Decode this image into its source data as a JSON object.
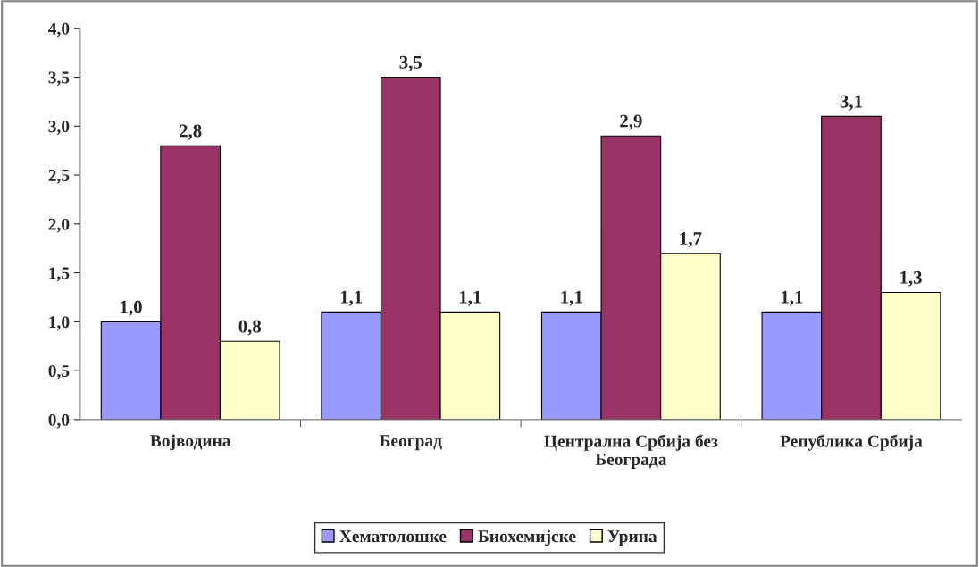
{
  "chart_data": {
    "type": "bar",
    "categories": [
      "Војводина",
      "Београд",
      "Централна Србија без Београда",
      "Република Србија"
    ],
    "series": [
      {
        "name": "Хематолошке",
        "color": "#9999ff",
        "values": [
          1.0,
          1.1,
          1.1,
          1.1
        ],
        "value_labels": [
          "1,0",
          "1,1",
          "1,1",
          "1,1"
        ]
      },
      {
        "name": "Биохемијске",
        "color": "#993366",
        "values": [
          2.8,
          3.5,
          2.9,
          3.1
        ],
        "value_labels": [
          "2,8",
          "3,5",
          "2,9",
          "3,1"
        ]
      },
      {
        "name": "Урина",
        "color": "#ffffcc",
        "values": [
          0.8,
          1.1,
          1.7,
          1.3
        ],
        "value_labels": [
          "0,8",
          "1,1",
          "1,7",
          "1,3"
        ]
      }
    ],
    "ylim": [
      0,
      4
    ],
    "yticks": [
      {
        "value": 0,
        "label": "0,0"
      },
      {
        "value": 0.5,
        "label": "0,5"
      },
      {
        "value": 1,
        "label": "1,0"
      },
      {
        "value": 1.5,
        "label": "1,5"
      },
      {
        "value": 2,
        "label": "2,0"
      },
      {
        "value": 2.5,
        "label": "2,5"
      },
      {
        "value": 3,
        "label": "3,0"
      },
      {
        "value": 3.5,
        "label": "3,5"
      },
      {
        "value": 4,
        "label": "4,0"
      }
    ],
    "grid": false,
    "legend": "bottom"
  }
}
